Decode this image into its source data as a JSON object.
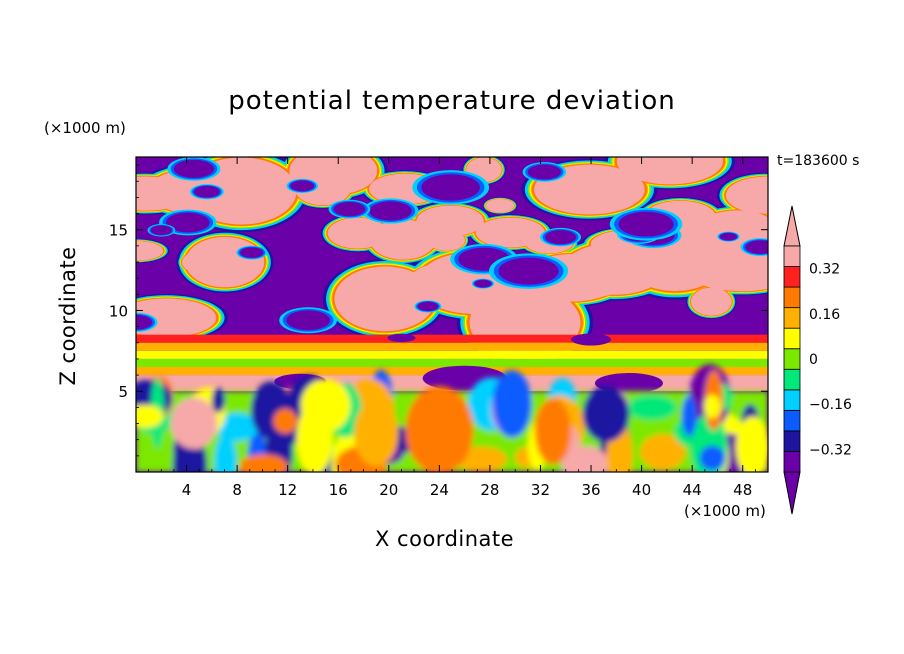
{
  "chart_data": {
    "type": "heatmap",
    "title": "potential temperature deviation",
    "xlabel": "X coordinate",
    "ylabel": "Z coordinate",
    "x_unit": "(×1000 m)",
    "z_unit": "(×1000 m)",
    "time_label": "t=183600 s",
    "xlim": [
      0,
      50
    ],
    "ylim": [
      0,
      19.5
    ],
    "x_ticks": [
      4,
      8,
      12,
      16,
      20,
      24,
      28,
      32,
      36,
      40,
      44,
      48
    ],
    "y_ticks": [
      5,
      10,
      15
    ],
    "colorbar": {
      "levels": [
        -0.4,
        -0.32,
        -0.24,
        -0.16,
        -0.08,
        0,
        0.08,
        0.16,
        0.24,
        0.32,
        0.4
      ],
      "labels": [
        "0.32",
        "0.16",
        "0",
        "−0.16",
        "−0.32"
      ],
      "label_values": [
        0.32,
        0.16,
        0,
        -0.16,
        -0.32
      ],
      "colors": [
        "#6a00a8",
        "#1e14a0",
        "#0a5cff",
        "#00d0ff",
        "#00e87a",
        "#7ce800",
        "#ffff00",
        "#ffb000",
        "#ff7a00",
        "#ff2020",
        "#f7a8a8"
      ],
      "under_color": "#6a00a8",
      "over_color": "#f7a8a8"
    },
    "layers": [
      {
        "z": [
          8.0,
          8.5
        ],
        "value": 0.36
      },
      {
        "z": [
          7.5,
          8.0
        ],
        "value": 0.2
      },
      {
        "z": [
          7.0,
          7.5
        ],
        "value": 0.12
      },
      {
        "z": [
          6.5,
          7.0
        ],
        "value": 0.04
      },
      {
        "z": [
          6.0,
          6.5
        ],
        "value": 0.2
      },
      {
        "z": [
          5.0,
          6.0
        ],
        "value": 0.45
      }
    ]
  }
}
